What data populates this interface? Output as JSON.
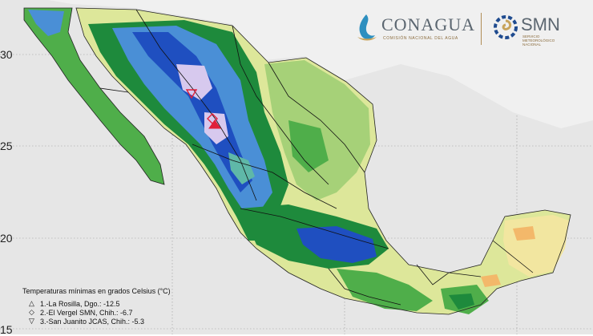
{
  "logos": {
    "conagua": "CONAGUA",
    "conagua_sub": "COMISIÓN NACIONAL DEL AGUA",
    "smn": "SMN",
    "smn_sub": "SERVICIO METEOROLÓGICO NACIONAL"
  },
  "axis": {
    "y_ticks": [
      "30",
      "25",
      "20",
      "15"
    ]
  },
  "legend": {
    "title": "Temperaturas mínimas en grados Celsius (°C)",
    "entries": [
      {
        "symbol": "△",
        "label": "1.-La Rosilla, Dgo.: -12.5"
      },
      {
        "symbol": "◇",
        "label": "2.-El Vergel SMN, Chih.: -6.7"
      },
      {
        "symbol": "▽",
        "label": "3.-San Juanito JCAS, Chih.: -5.3"
      }
    ]
  },
  "colors": {
    "sea": "#e6e6e6",
    "cold_violet": "#d7c9ee",
    "cold_blue": "#1f4fc0",
    "mid_blue": "#4a8fd6",
    "teal": "#5fb8a8",
    "dark_green": "#1e8a3c",
    "green": "#4fae4a",
    "light_green": "#a6d178",
    "yellow_green": "#dde79a",
    "yellow": "#f2e6a0",
    "orange": "#f3b86a",
    "marker": "#e0203a"
  },
  "station_markers": [
    "triangle-up",
    "diamond",
    "triangle-down"
  ]
}
